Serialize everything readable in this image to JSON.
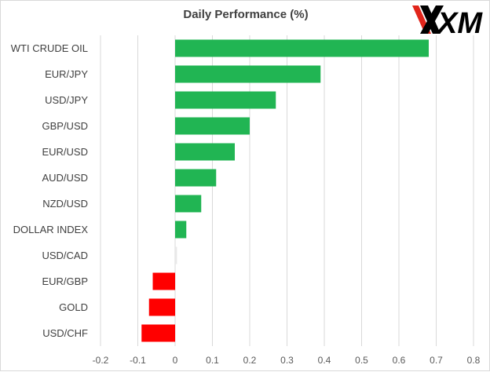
{
  "brand": {
    "logo_text": "XM",
    "logo_icon": "xm-logo",
    "colors": {
      "mark": "#000000",
      "accent": "#e1251b"
    }
  },
  "chart_data": {
    "type": "bar",
    "orientation": "horizontal",
    "title": "Daily Performance  (%)",
    "categories": [
      "WTI CRUDE OIL",
      "EUR/JPY",
      "USD/JPY",
      "GBP/USD",
      "EUR/USD",
      "AUD/USD",
      "NZD/USD",
      "DOLLAR INDEX",
      "USD/CAD",
      "EUR/GBP",
      "GOLD",
      "USD/CHF"
    ],
    "values": [
      0.68,
      0.39,
      0.27,
      0.2,
      0.16,
      0.11,
      0.07,
      0.03,
      0.005,
      -0.06,
      -0.07,
      -0.09
    ],
    "xlim": [
      -0.2,
      0.8
    ],
    "xticks": [
      "-0.2",
      "-0.1",
      "0",
      "0.1",
      "0.2",
      "0.3",
      "0.4",
      "0.5",
      "0.6",
      "0.7",
      "0.8"
    ],
    "xtick_values": [
      -0.2,
      -0.1,
      0,
      0.1,
      0.2,
      0.3,
      0.4,
      0.5,
      0.6,
      0.7,
      0.8
    ],
    "grid": "vertical",
    "legend": "none",
    "colors": {
      "positive": "#21b553",
      "negative": "#ff0000",
      "zero": "#e8e8e8",
      "grid": "#d9d9d9"
    }
  }
}
